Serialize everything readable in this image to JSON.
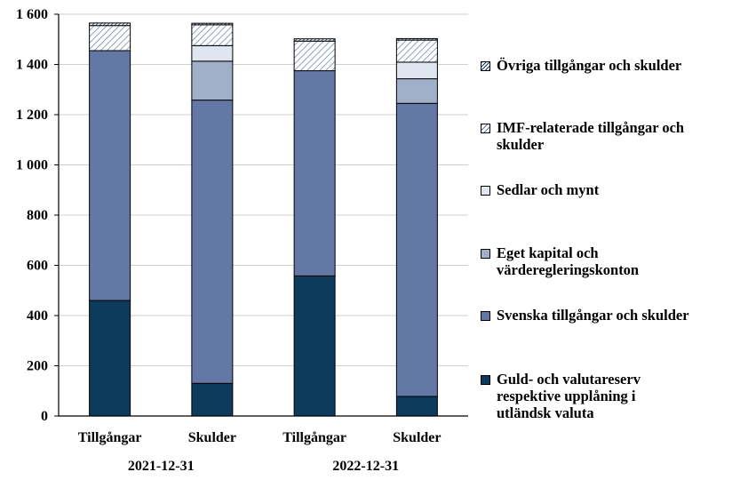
{
  "chart_data": {
    "type": "bar",
    "stacked": true,
    "categories": [
      "Tillgångar",
      "Skulder",
      "Tillgångar",
      "Skulder"
    ],
    "groups": [
      {
        "label": "2021-12-31",
        "categories": [
          0,
          1
        ]
      },
      {
        "label": "2022-12-31",
        "categories": [
          2,
          3
        ]
      }
    ],
    "ylim": [
      0,
      1600
    ],
    "yticks": [
      0,
      200,
      400,
      600,
      800,
      1000,
      1200,
      1400,
      1600
    ],
    "ytick_labels": [
      "0",
      "200",
      "400",
      "600",
      "800",
      "1 000",
      "1 200",
      "1 400",
      "1 600"
    ],
    "grid": true,
    "legend_position": "right",
    "series": [
      {
        "name": "Guld- och valutareserv respektive upplåning i utländsk valuta",
        "color": "#0c3b5e",
        "pattern": "solid",
        "values": [
          460,
          130,
          558,
          78
        ]
      },
      {
        "name": "Svenska tillgångar och skulder",
        "color": "#6478a5",
        "pattern": "solid",
        "values": [
          995,
          1128,
          817,
          1167
        ]
      },
      {
        "name": "Eget kapital och värderegleringskonton",
        "color": "#a0b0c9",
        "pattern": "solid",
        "values": [
          0,
          155,
          0,
          98
        ]
      },
      {
        "name": "Sedlar och mynt",
        "color": "#dfe6ef",
        "pattern": "solid",
        "values": [
          0,
          62,
          0,
          66
        ]
      },
      {
        "name": "IMF-relaterade tillgångar och skulder",
        "color": "#6478a5",
        "pattern": "hatch-light",
        "values": [
          100,
          83,
          118,
          88
        ]
      },
      {
        "name": "Övriga tillgångar och skulder",
        "color": "#0c3b5e",
        "pattern": "hatch-dense",
        "values": [
          10,
          6,
          9,
          6
        ]
      }
    ]
  },
  "legend": [
    {
      "label": "Övriga tillgångar och skulder"
    },
    {
      "label": "IMF-relaterade tillgångar och\nskulder"
    },
    {
      "label": "Sedlar och mynt"
    },
    {
      "label": "Eget kapital och\nvärderegleringskonton"
    },
    {
      "label": "Svenska tillgångar och skulder"
    },
    {
      "label": "Guld- och valutareserv\nrespektive upplåning i\nutländsk valuta"
    }
  ]
}
